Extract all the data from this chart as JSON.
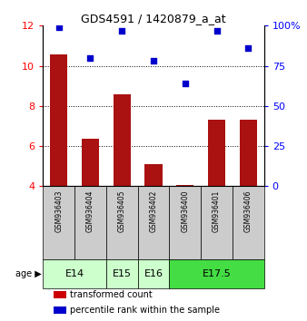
{
  "title": "GDS4591 / 1420879_a_at",
  "samples": [
    "GSM936403",
    "GSM936404",
    "GSM936405",
    "GSM936402",
    "GSM936400",
    "GSM936401",
    "GSM936406"
  ],
  "transformed_count": [
    10.55,
    6.35,
    8.6,
    5.1,
    4.05,
    7.3,
    7.3
  ],
  "percentile_rank": [
    99,
    80,
    97,
    78,
    64,
    97,
    86
  ],
  "age_groups": [
    {
      "label": "E14",
      "indices": [
        0,
        1
      ],
      "color": "#ccffcc"
    },
    {
      "label": "E15",
      "indices": [
        2
      ],
      "color": "#ccffcc"
    },
    {
      "label": "E16",
      "indices": [
        3
      ],
      "color": "#ccffcc"
    },
    {
      "label": "E17.5",
      "indices": [
        4,
        5,
        6
      ],
      "color": "#44dd44"
    }
  ],
  "ylim_left": [
    4,
    12
  ],
  "yticks_left": [
    4,
    6,
    8,
    10,
    12
  ],
  "ylim_right": [
    0,
    100
  ],
  "yticks_right": [
    0,
    25,
    50,
    75,
    100
  ],
  "bar_color": "#aa1111",
  "dot_color": "#0000cc",
  "bar_bottom": 4,
  "gray_bg": "#cccccc",
  "legend_items": [
    {
      "color": "#cc0000",
      "label": "transformed count"
    },
    {
      "color": "#0000cc",
      "label": "percentile rank within the sample"
    }
  ]
}
